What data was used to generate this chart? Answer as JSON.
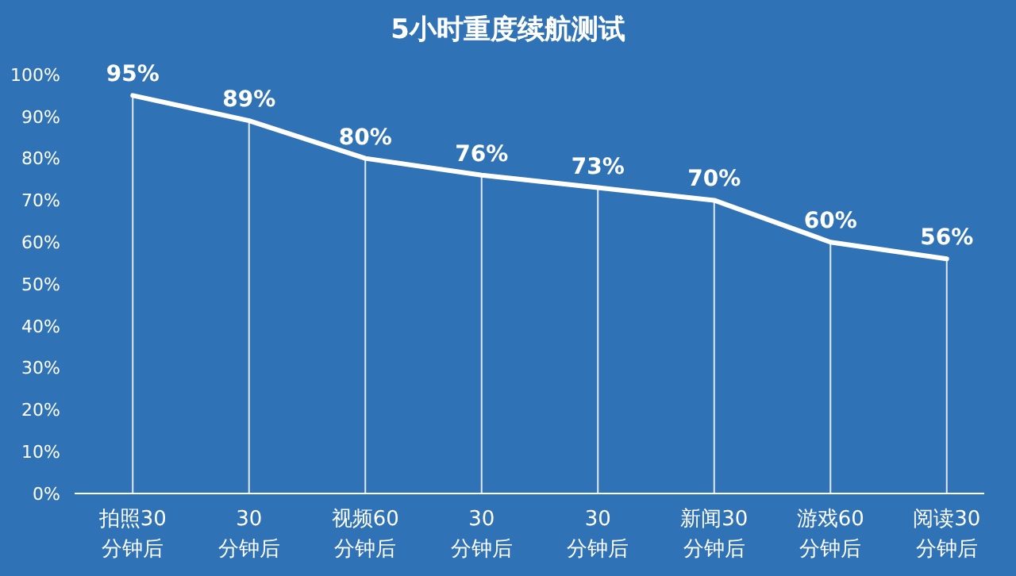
{
  "chart_data": {
    "type": "line",
    "title": "5小时重度续航测试",
    "categories": [
      "拍照30\n分钟后",
      "30\n分钟后",
      "视频60\n分钟后",
      "30\n分钟后",
      "30\n分钟后",
      "新闻30\n分钟后",
      "游戏60\n分钟后",
      "阅读30\n分钟后"
    ],
    "series": [
      {
        "color": "#ffffff",
        "values": [
          95,
          89,
          80,
          76,
          73,
          70,
          60,
          56
        ],
        "value_labels": [
          "95%",
          "89%",
          "80%",
          "76%",
          "73%",
          "70%",
          "60%",
          "56%"
        ]
      }
    ],
    "ylim": [
      0,
      100
    ],
    "yticks": [
      {
        "value": 0,
        "label": "0%"
      },
      {
        "value": 10,
        "label": "10%"
      },
      {
        "value": 20,
        "label": "20%"
      },
      {
        "value": 30,
        "label": "30%"
      },
      {
        "value": 40,
        "label": "40%"
      },
      {
        "value": 50,
        "label": "50%"
      },
      {
        "value": 60,
        "label": "60%"
      },
      {
        "value": 70,
        "label": "70%"
      },
      {
        "value": 80,
        "label": "80%"
      },
      {
        "value": 90,
        "label": "90%"
      },
      {
        "value": 100,
        "label": "100%"
      }
    ],
    "grid": "x",
    "marker": "none",
    "line_style": "solid"
  }
}
